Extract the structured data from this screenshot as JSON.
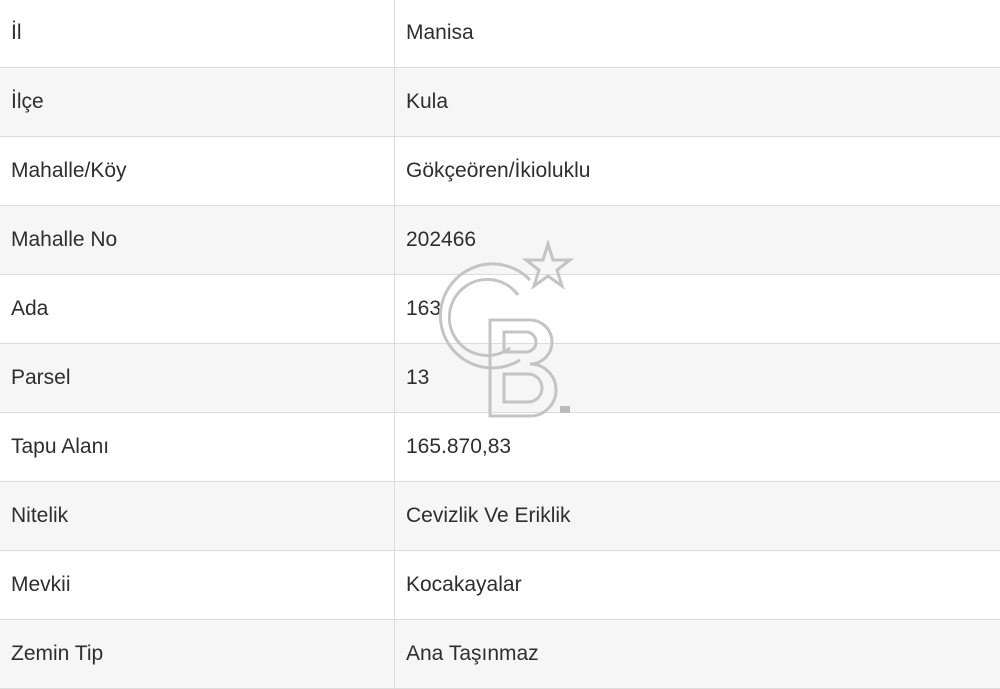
{
  "rows": [
    {
      "label": "İl",
      "value": "Manisa"
    },
    {
      "label": "İlçe",
      "value": "Kula"
    },
    {
      "label": "Mahalle/Köy",
      "value": "Gökçeören/İkioluklu"
    },
    {
      "label": "Mahalle No",
      "value": "202466"
    },
    {
      "label": "Ada",
      "value": "163"
    },
    {
      "label": "Parsel",
      "value": "13"
    },
    {
      "label": "Tapu Alanı",
      "value": "165.870,83"
    },
    {
      "label": "Nitelik",
      "value": "Cevizlik Ve Eriklik"
    },
    {
      "label": "Mevkii",
      "value": "Kocakayalar"
    },
    {
      "label": "Zemin Tip",
      "value": "Ana Taşınmaz"
    }
  ],
  "watermark": {
    "text": "CB",
    "icon": "cb-logo-star",
    "color": "#c8c8c8"
  }
}
